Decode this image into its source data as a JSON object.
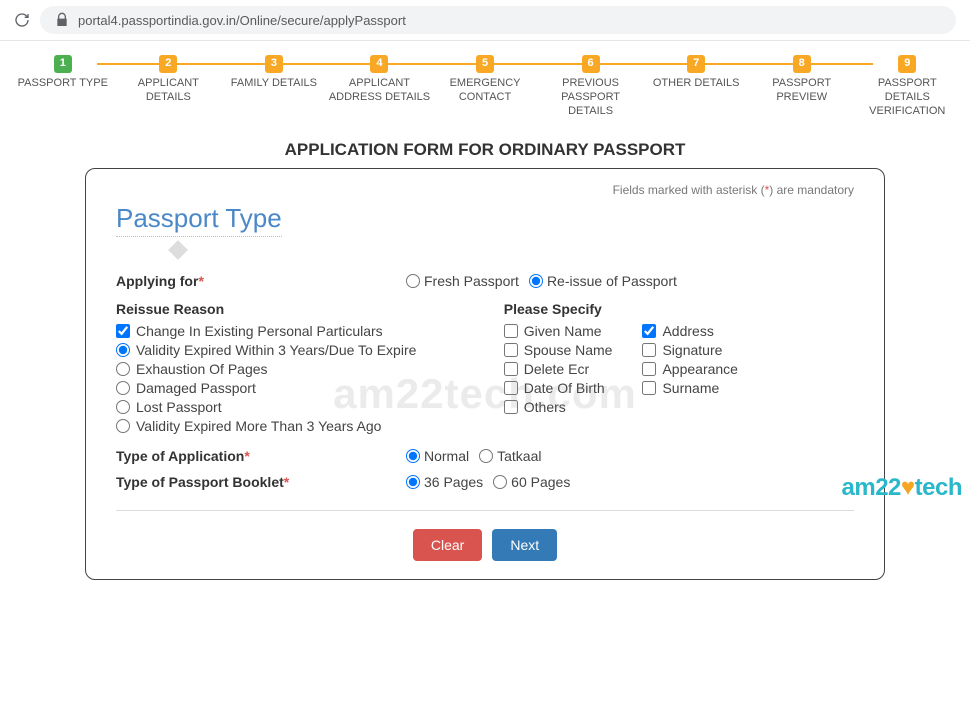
{
  "browser": {
    "url": "portal4.passportindia.gov.in/Online/secure/applyPassport"
  },
  "steps": {
    "active_color": "#4caf50",
    "inactive_color": "#f9a825",
    "line_color": "#f9a825",
    "items": [
      {
        "num": "1",
        "label": "PASSPORT TYPE"
      },
      {
        "num": "2",
        "label": "APPLICANT\nDETAILS"
      },
      {
        "num": "3",
        "label": "FAMILY DETAILS"
      },
      {
        "num": "4",
        "label": "APPLICANT\nADDRESS DETAILS"
      },
      {
        "num": "5",
        "label": "EMERGENCY\nCONTACT"
      },
      {
        "num": "6",
        "label": "PREVIOUS\nPASSPORT DETAILS"
      },
      {
        "num": "7",
        "label": "OTHER DETAILS"
      },
      {
        "num": "8",
        "label": "PASSPORT\nPREVIEW"
      },
      {
        "num": "9",
        "label": "PASSPORT DETAILS\nVERIFICATION"
      }
    ]
  },
  "form": {
    "page_title": "APPLICATION FORM FOR ORDINARY PASSPORT",
    "mandatory_note_prefix": "Fields marked with asterisk (",
    "mandatory_note_suffix": ") are mandatory",
    "asterisk": "*",
    "section": "Passport Type",
    "applying_for": {
      "label": "Applying for",
      "options": [
        "Fresh Passport",
        "Re-issue of Passport"
      ],
      "selected": 1
    },
    "reissue": {
      "heading": "Reissue Reason",
      "items": [
        {
          "type": "checkbox",
          "label": "Change In Existing Personal Particulars",
          "checked": true
        },
        {
          "type": "radio",
          "label": "Validity Expired Within 3 Years/Due To Expire",
          "checked": true
        },
        {
          "type": "radio",
          "label": "Exhaustion Of Pages",
          "checked": false
        },
        {
          "type": "radio",
          "label": "Damaged Passport",
          "checked": false
        },
        {
          "type": "radio",
          "label": "Lost Passport",
          "checked": false
        },
        {
          "type": "radio",
          "label": "Validity Expired More Than 3 Years Ago",
          "checked": false
        }
      ]
    },
    "specify": {
      "heading": "Please Specify",
      "col1": [
        {
          "label": "Given Name",
          "checked": false
        },
        {
          "label": "Spouse Name",
          "checked": false
        },
        {
          "label": "Delete Ecr",
          "checked": false
        },
        {
          "label": "Date Of Birth",
          "checked": false
        },
        {
          "label": "Others",
          "checked": false
        }
      ],
      "col2": [
        {
          "label": "Address",
          "checked": true
        },
        {
          "label": "Signature",
          "checked": false
        },
        {
          "label": "Appearance",
          "checked": false
        },
        {
          "label": "Surname",
          "checked": false
        }
      ]
    },
    "app_type": {
      "label": "Type of Application",
      "options": [
        "Normal",
        "Tatkaal"
      ],
      "selected": 0
    },
    "booklet": {
      "label": "Type of Passport Booklet",
      "options": [
        "36 Pages",
        "60 Pages"
      ],
      "selected": 0
    },
    "buttons": {
      "clear": {
        "label": "Clear",
        "color": "#d9534f"
      },
      "next": {
        "label": "Next",
        "color": "#337ab7"
      }
    }
  },
  "watermark": {
    "center": "am22tech.com",
    "logo_a": "am22",
    "logo_b": "tech"
  }
}
